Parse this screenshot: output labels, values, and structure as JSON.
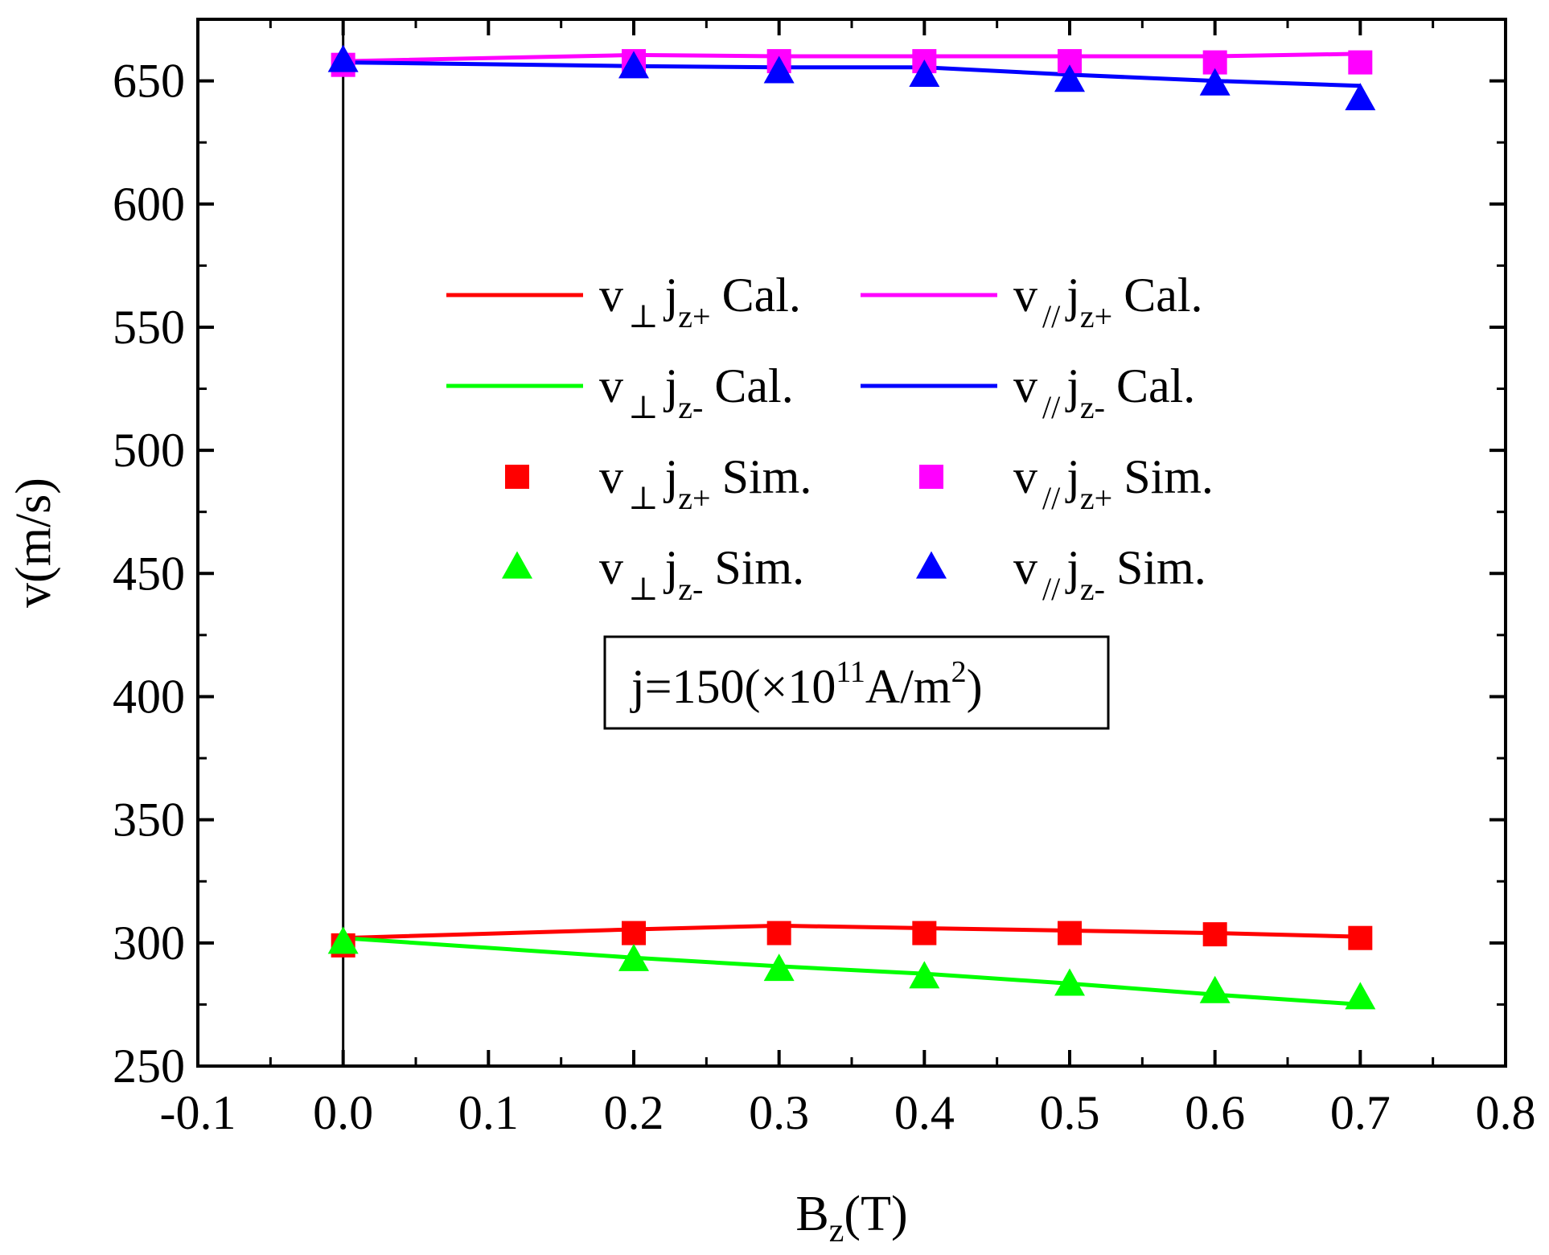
{
  "chart_data": {
    "type": "line",
    "xlabel": "B",
    "xlabel_sub": "z",
    "xlabel_unit": "(T)",
    "ylabel": "v(m/s)",
    "xlim": [
      -0.1,
      0.8
    ],
    "ylim": [
      250,
      675
    ],
    "xticks": [
      -0.1,
      0.0,
      0.1,
      0.2,
      0.3,
      0.4,
      0.5,
      0.6,
      0.7,
      0.8
    ],
    "xtick_labels": [
      "-0.1",
      "0.0",
      "0.1",
      "0.2",
      "0.3",
      "0.4",
      "0.5",
      "0.6",
      "0.7",
      "0.8"
    ],
    "yticks": [
      250,
      300,
      350,
      400,
      450,
      500,
      550,
      600,
      650
    ],
    "ytick_labels": [
      "250",
      "300",
      "350",
      "400",
      "450",
      "500",
      "550",
      "600",
      "650"
    ],
    "vertical_reference_line_x": 0.0,
    "x": [
      0.0,
      0.2,
      0.3,
      0.4,
      0.5,
      0.6,
      0.7
    ],
    "series": [
      {
        "id": "perp_plus_cal",
        "kind": "line",
        "color": "#ff0000",
        "values": [
          302,
          305.5,
          307,
          306,
          305,
          304,
          302.5
        ]
      },
      {
        "id": "par_plus_cal",
        "kind": "line",
        "color": "#ff00ff",
        "values": [
          658,
          660.5,
          660,
          660,
          660,
          660,
          661
        ]
      },
      {
        "id": "perp_minus_cal",
        "kind": "line",
        "color": "#00ff00",
        "values": [
          302,
          294,
          290.5,
          287.5,
          283.5,
          279,
          275
        ]
      },
      {
        "id": "par_minus_cal",
        "kind": "line",
        "color": "#0000ff",
        "values": [
          657.5,
          656,
          655.5,
          655.5,
          652.5,
          650,
          648
        ]
      },
      {
        "id": "perp_plus_sim",
        "kind": "marker",
        "marker": "square",
        "color": "#ff0000",
        "values": [
          299,
          304,
          304,
          304,
          304,
          303.5,
          302
        ]
      },
      {
        "id": "par_plus_sim",
        "kind": "marker",
        "marker": "square",
        "color": "#ff00ff",
        "values": [
          656.5,
          658,
          658,
          658,
          658,
          657.5,
          657.5
        ]
      },
      {
        "id": "perp_minus_sim",
        "kind": "marker",
        "marker": "triangle",
        "color": "#00ff00",
        "values": [
          300,
          293,
          289,
          286,
          283,
          280,
          277.5
        ]
      },
      {
        "id": "par_minus_sim",
        "kind": "marker",
        "marker": "triangle",
        "color": "#0000ff",
        "values": [
          658,
          655.5,
          653.5,
          652,
          650,
          648.5,
          642.5
        ]
      }
    ],
    "legend": [
      {
        "series": "perp_plus_cal",
        "v": "v",
        "vsub": "⊥",
        "j": "j",
        "jsub": "z+",
        "tag": "Cal."
      },
      {
        "series": "par_plus_cal",
        "v": "v",
        "vsub": "//",
        "j": "j",
        "jsub": "z+",
        "tag": "Cal."
      },
      {
        "series": "perp_minus_cal",
        "v": "v",
        "vsub": "⊥",
        "j": "j",
        "jsub": "z-",
        "tag": "Cal."
      },
      {
        "series": "par_minus_cal",
        "v": "v",
        "vsub": "//",
        "j": "j",
        "jsub": "z-",
        "tag": "Cal."
      },
      {
        "series": "perp_plus_sim",
        "v": "v",
        "vsub": "⊥",
        "j": "j",
        "jsub": "z+",
        "tag": "Sim."
      },
      {
        "series": "par_plus_sim",
        "v": "v",
        "vsub": "//",
        "j": "j",
        "jsub": "z+",
        "tag": "Sim."
      },
      {
        "series": "perp_minus_sim",
        "v": "v",
        "vsub": "⊥",
        "j": "j",
        "jsub": "z-",
        "tag": "Sim."
      },
      {
        "series": "par_minus_sim",
        "v": "v",
        "vsub": "//",
        "j": "j",
        "jsub": "z-",
        "tag": "Sim."
      }
    ],
    "annotation": {
      "prefix": "j=150(×10",
      "exp": "11",
      "mid": "A/m",
      "exp2": "2",
      "suffix": ")"
    }
  }
}
